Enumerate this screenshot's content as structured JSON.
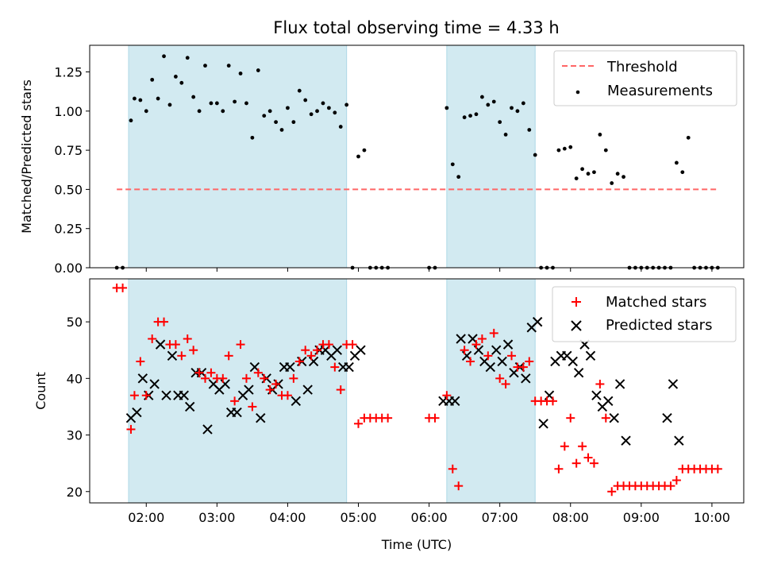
{
  "title": "Flux total observing time = 4.33 h",
  "colors": {
    "shade": "#add8e6",
    "threshold": "#ff6666",
    "measurements": "#000000",
    "matched": "#ff0000",
    "predicted": "#000000"
  },
  "chart_data": [
    {
      "type": "scatter",
      "ylabel": "Matched/Predicted stars",
      "xlim": [
        "01:12",
        "10:27"
      ],
      "ylim": [
        0,
        1.42
      ],
      "y_ticks": [
        0.0,
        0.25,
        0.5,
        0.75,
        1.0,
        1.25
      ],
      "y_tick_labels": [
        "0.00",
        "0.25",
        "0.50",
        "0.75",
        "1.00",
        "1.25"
      ],
      "shaded_intervals": [
        [
          "01:45",
          "04:50"
        ],
        [
          "06:15",
          "07:30"
        ]
      ],
      "legend": {
        "position": "upper right",
        "entries": [
          "Threshold",
          "Measurements"
        ]
      },
      "threshold": {
        "name": "Threshold",
        "y": 0.5,
        "x": [
          "01:35",
          "10:05"
        ]
      },
      "series": [
        {
          "name": "Measurements",
          "x": [
            "01:35",
            "01:40",
            "01:47",
            "01:50",
            "01:55",
            "02:00",
            "02:05",
            "02:10",
            "02:15",
            "02:20",
            "02:25",
            "02:30",
            "02:35",
            "02:40",
            "02:45",
            "02:50",
            "02:55",
            "03:00",
            "03:05",
            "03:10",
            "03:15",
            "03:20",
            "03:25",
            "03:30",
            "03:35",
            "03:40",
            "03:45",
            "03:50",
            "03:55",
            "04:00",
            "04:05",
            "04:10",
            "04:15",
            "04:20",
            "04:25",
            "04:30",
            "04:35",
            "04:40",
            "04:45",
            "04:50",
            "04:55",
            "05:00",
            "05:05",
            "05:10",
            "05:15",
            "05:20",
            "05:25",
            "06:00",
            "06:05",
            "06:15",
            "06:20",
            "06:25",
            "06:30",
            "06:35",
            "06:40",
            "06:45",
            "06:50",
            "06:55",
            "07:00",
            "07:05",
            "07:10",
            "07:15",
            "07:20",
            "07:25",
            "07:30",
            "07:35",
            "07:40",
            "07:45",
            "07:50",
            "07:55",
            "08:00",
            "08:05",
            "08:10",
            "08:15",
            "08:20",
            "08:25",
            "08:30",
            "08:35",
            "08:40",
            "08:45",
            "08:50",
            "08:55",
            "09:00",
            "09:05",
            "09:10",
            "09:15",
            "09:20",
            "09:25",
            "09:30",
            "09:35",
            "09:40",
            "09:45",
            "09:50",
            "09:55",
            "10:00",
            "10:05"
          ],
          "y": [
            0.0,
            0.0,
            0.94,
            1.08,
            1.07,
            1.0,
            1.2,
            1.08,
            1.35,
            1.04,
            1.22,
            1.18,
            1.34,
            1.09,
            1.0,
            1.29,
            1.05,
            1.05,
            1.0,
            1.29,
            1.06,
            1.24,
            1.05,
            0.83,
            1.26,
            0.97,
            1.0,
            0.93,
            0.88,
            1.02,
            0.93,
            1.13,
            1.07,
            0.98,
            1.0,
            1.05,
            1.02,
            0.99,
            0.9,
            1.04,
            0.0,
            0.71,
            0.75,
            0.0,
            0.0,
            0.0,
            0.0,
            0.0,
            0.0,
            1.02,
            0.66,
            0.58,
            0.96,
            0.97,
            0.98,
            1.09,
            1.04,
            1.06,
            0.93,
            0.85,
            1.02,
            1.0,
            1.05,
            0.88,
            0.72,
            0.0,
            0.0,
            0.0,
            0.75,
            0.76,
            0.77,
            0.57,
            0.63,
            0.6,
            0.61,
            0.85,
            0.75,
            0.54,
            0.6,
            0.58,
            0.0,
            0.0,
            0.0,
            0.0,
            0.0,
            0.0,
            0.0,
            0.0,
            0.67,
            0.61,
            0.83,
            0.0,
            0.0,
            0.0,
            0.0,
            0.0
          ]
        }
      ]
    },
    {
      "type": "scatter",
      "xlabel": "Time (UTC)",
      "ylabel": "Count",
      "xlim": [
        "01:12",
        "10:27"
      ],
      "ylim": [
        18,
        57.6
      ],
      "x_ticks": [
        "02:00",
        "03:00",
        "04:00",
        "05:00",
        "06:00",
        "07:00",
        "08:00",
        "09:00",
        "10:00"
      ],
      "y_ticks": [
        20,
        30,
        40,
        50
      ],
      "shaded_intervals": [
        [
          "01:45",
          "04:50"
        ],
        [
          "06:15",
          "07:30"
        ]
      ],
      "legend": {
        "position": "upper right",
        "entries": [
          "Matched stars",
          "Predicted stars"
        ]
      },
      "series": [
        {
          "name": "Matched stars",
          "marker": "+",
          "x": [
            "01:35",
            "01:40",
            "01:47",
            "01:50",
            "01:55",
            "02:00",
            "02:05",
            "02:10",
            "02:15",
            "02:20",
            "02:25",
            "02:30",
            "02:35",
            "02:40",
            "02:45",
            "02:50",
            "02:55",
            "03:00",
            "03:05",
            "03:10",
            "03:15",
            "03:20",
            "03:25",
            "03:30",
            "03:35",
            "03:40",
            "03:45",
            "03:50",
            "03:55",
            "04:00",
            "04:05",
            "04:10",
            "04:15",
            "04:20",
            "04:25",
            "04:30",
            "04:35",
            "04:40",
            "04:45",
            "04:50",
            "04:55",
            "05:00",
            "05:05",
            "05:10",
            "05:15",
            "05:20",
            "05:25",
            "06:00",
            "06:05",
            "06:15",
            "06:20",
            "06:25",
            "06:30",
            "06:35",
            "06:40",
            "06:45",
            "06:50",
            "06:55",
            "07:00",
            "07:05",
            "07:10",
            "07:15",
            "07:20",
            "07:25",
            "07:30",
            "07:35",
            "07:40",
            "07:45",
            "07:50",
            "07:55",
            "08:00",
            "08:05",
            "08:10",
            "08:15",
            "08:20",
            "08:25",
            "08:30",
            "08:35",
            "08:40",
            "08:45",
            "08:50",
            "08:55",
            "09:00",
            "09:05",
            "09:10",
            "09:15",
            "09:20",
            "09:25",
            "09:30",
            "09:35",
            "09:40",
            "09:45",
            "09:50",
            "09:55",
            "10:00",
            "10:05"
          ],
          "y": [
            56,
            56,
            31,
            37,
            43,
            37,
            47,
            50,
            50,
            46,
            46,
            44,
            47,
            45,
            41,
            40,
            41,
            40,
            40,
            44,
            36,
            46,
            40,
            35,
            41,
            40,
            38,
            39,
            37,
            37,
            40,
            43,
            45,
            44,
            45,
            46,
            46,
            42,
            38,
            46,
            46,
            32,
            33,
            33,
            33,
            33,
            33,
            33,
            33,
            37,
            24,
            21,
            45,
            43,
            46,
            47,
            44,
            48,
            40,
            39,
            44,
            42,
            42,
            43,
            36,
            36,
            36,
            36,
            24,
            28,
            33,
            25,
            28,
            26,
            25,
            39,
            33,
            20,
            21,
            21,
            21,
            21,
            21,
            21,
            21,
            21,
            21,
            21,
            22,
            24,
            24,
            24,
            24,
            24,
            24,
            24
          ]
        },
        {
          "name": "Predicted stars",
          "marker": "x",
          "x": [
            "01:47",
            "01:52",
            "01:57",
            "02:02",
            "02:07",
            "02:12",
            "02:17",
            "02:22",
            "02:27",
            "02:32",
            "02:37",
            "02:42",
            "02:47",
            "02:52",
            "02:57",
            "03:02",
            "03:07",
            "03:12",
            "03:17",
            "03:22",
            "03:27",
            "03:32",
            "03:37",
            "03:42",
            "03:47",
            "03:52",
            "03:57",
            "04:02",
            "04:07",
            "04:12",
            "04:17",
            "04:22",
            "04:27",
            "04:32",
            "04:37",
            "04:42",
            "04:47",
            "04:52",
            "04:57",
            "05:02",
            "06:12",
            "06:17",
            "06:22",
            "06:27",
            "06:32",
            "06:37",
            "06:42",
            "06:47",
            "06:52",
            "06:57",
            "07:02",
            "07:07",
            "07:12",
            "07:17",
            "07:22",
            "07:27",
            "07:32",
            "07:37",
            "07:42",
            "07:47",
            "07:52",
            "07:57",
            "08:02",
            "08:07",
            "08:12",
            "08:17",
            "08:22",
            "08:27",
            "08:32",
            "08:37",
            "08:42",
            "08:47",
            "09:22",
            "09:27",
            "09:32"
          ],
          "y": [
            33,
            34,
            40,
            37,
            39,
            46,
            37,
            44,
            37,
            37,
            35,
            41,
            41,
            31,
            39,
            38,
            39,
            34,
            34,
            37,
            38,
            42,
            33,
            40,
            38,
            39,
            42,
            42,
            36,
            43,
            38,
            43,
            45,
            45,
            44,
            45,
            42,
            42,
            44,
            45,
            36,
            36,
            36,
            47,
            44,
            47,
            45,
            43,
            42,
            45,
            43,
            46,
            41,
            42,
            40,
            49,
            50,
            32,
            37,
            43,
            44,
            44,
            43,
            41,
            46,
            44,
            37,
            35,
            36,
            33,
            39,
            29,
            33,
            39,
            29
          ]
        }
      ]
    }
  ]
}
